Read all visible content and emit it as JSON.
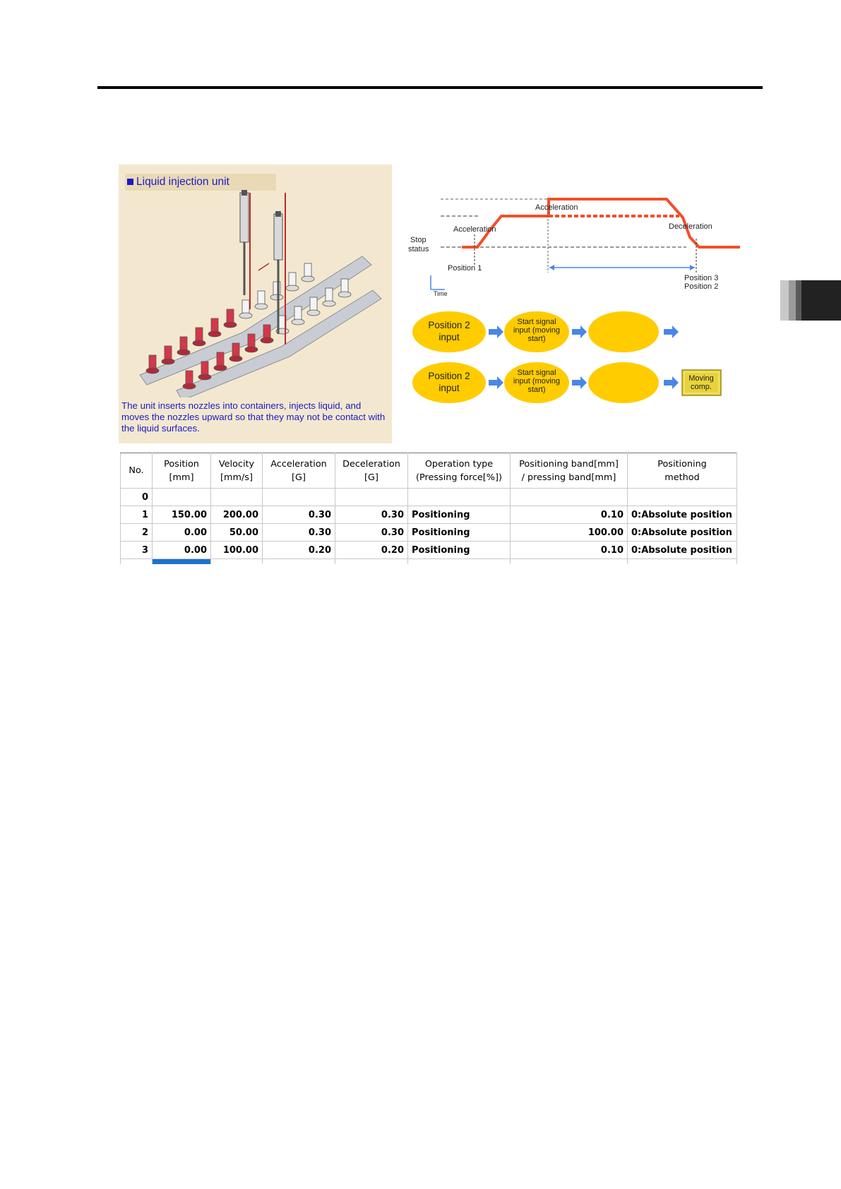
{
  "illustration": {
    "title": "Liquid injection unit",
    "caption": "The unit inserts nozzles into containers, injects liquid, and moves the nozzles upward so that they may not be contact with the liquid surfaces."
  },
  "timing_chart": {
    "label_acceleration_left": "Acceleration",
    "label_acceleration_top": "Acceleration",
    "label_deceleration": "Deceleration",
    "label_stop_status_1": "Stop",
    "label_stop_status_2": "status",
    "label_position1": "Position 1",
    "label_position3": "Position 3",
    "label_position2": "Position 2",
    "label_time": "Time",
    "line_color": "#f0502a"
  },
  "flow": {
    "row1": {
      "step1_l1": "Position 2",
      "step1_l2": "input",
      "step2_l1": "Start signal",
      "step2_l2": "input (moving",
      "step2_l3": "start)"
    },
    "row2": {
      "step1_l1": "Position 2",
      "step1_l2": "input",
      "step2_l1": "Start signal",
      "step2_l2": "input (moving",
      "step2_l3": "start)",
      "end_l1": "Moving",
      "end_l2": "comp."
    },
    "ellipse_color": "#ffcc00",
    "arrow_color": "#4a86e8"
  },
  "table": {
    "headers": [
      {
        "l1": "No.",
        "l2": ""
      },
      {
        "l1": "Position",
        "l2": "[mm]"
      },
      {
        "l1": "Velocity",
        "l2": "[mm/s]"
      },
      {
        "l1": "Acceleration",
        "l2": "[G]"
      },
      {
        "l1": "Deceleration",
        "l2": "[G]"
      },
      {
        "l1": "Operation type",
        "l2": "(Pressing force[%])"
      },
      {
        "l1": "Positioning band[mm]",
        "l2": "/ pressing band[mm]"
      },
      {
        "l1": "Positioning",
        "l2": "method"
      }
    ],
    "rows": [
      {
        "no": "0",
        "position": "",
        "velocity": "",
        "accel": "",
        "decel": "",
        "op": "",
        "band": "",
        "method": ""
      },
      {
        "no": "1",
        "position": "150.00",
        "velocity": "200.00",
        "accel": "0.30",
        "decel": "0.30",
        "op": "Positioning",
        "band": "0.10",
        "method": "0:Absolute position"
      },
      {
        "no": "2",
        "position": "0.00",
        "velocity": "50.00",
        "accel": "0.30",
        "decel": "0.30",
        "op": "Positioning",
        "band": "100.00",
        "method": "0:Absolute position"
      },
      {
        "no": "3",
        "position": "0.00",
        "velocity": "100.00",
        "accel": "0.20",
        "decel": "0.20",
        "op": "Positioning",
        "band": "0.10",
        "method": "0:Absolute position"
      }
    ]
  }
}
